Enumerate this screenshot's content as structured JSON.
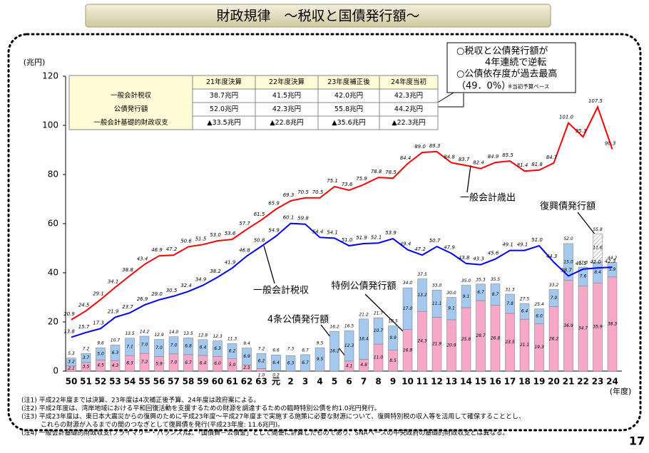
{
  "title": "財政規律　～税収と国債発行額～",
  "chart_data": {
    "type": "bar",
    "y_unit": "(兆円)",
    "x_unit": "(年度)",
    "categories": [
      "50",
      "51",
      "52",
      "53",
      "54",
      "55",
      "56",
      "57",
      "58",
      "59",
      "60",
      "61",
      "62",
      "63",
      "元",
      "2",
      "3",
      "4",
      "5",
      "6",
      "7",
      "8",
      "9",
      "10",
      "11",
      "12",
      "13",
      "14",
      "15",
      "16",
      "17",
      "18",
      "19",
      "20",
      "21",
      "22",
      "23",
      "24"
    ],
    "ylim": [
      0,
      120
    ],
    "yticks": [
      0,
      20,
      40,
      60,
      80,
      100,
      120
    ],
    "series": [
      {
        "name": "特例公債発行額",
        "type": "stack",
        "color": "#f7a8c8",
        "values": [
          2.1,
          3.5,
          4.5,
          4.3,
          6.3,
          7.2,
          5.9,
          7.0,
          6.7,
          6.4,
          6.0,
          5.0,
          2.5,
          1.0,
          0.2,
          null,
          null,
          null,
          null,
          4.1,
          4.8,
          11.0,
          8.5,
          16.9,
          24.3,
          21.9,
          20.9,
          25.8,
          28.7,
          26.8,
          23.5,
          21.1,
          19.3,
          26.2,
          36.9,
          34.7,
          35.9,
          38.3
        ],
        "value_labels": [
          "2.1",
          "3.5",
          "4.5",
          "4.3",
          "6.3",
          "7.2",
          "5.9",
          "7.0",
          "6.7",
          "6.4",
          "6.0",
          "5.0",
          "2.5",
          "1.0",
          "0.2",
          null,
          null,
          null,
          null,
          "4.1",
          "4.8",
          "11.0",
          "8.5",
          "16.9",
          "24.3",
          "21.9",
          "20.9",
          "25.8",
          "28.7",
          "26.8",
          "23.5",
          "21.1",
          "19.3",
          "26.2",
          "36.9",
          "34.7",
          "35.9",
          "38.3"
        ]
      },
      {
        "name": "4条公債発行額",
        "type": "stack",
        "color": "#a4c8ee",
        "values": [
          3.2,
          3.7,
          5.0,
          6.3,
          7.1,
          7.0,
          7.0,
          7.0,
          6.8,
          6.4,
          6.3,
          6.2,
          6.9,
          6.2,
          6.4,
          6.3,
          6.7,
          9.5,
          16.2,
          12.3,
          16.4,
          10.7,
          9.9,
          17.0,
          13.2,
          11.1,
          9.1,
          9.1,
          6.7,
          8.7,
          7.8,
          6.4,
          6.0,
          7.0,
          15.0,
          7.6,
          8.4,
          5.9
        ],
        "value_labels": [
          "3.2",
          "3.7",
          "5.0",
          "6.3",
          "7.1",
          "7.0",
          "7.0",
          "7.0",
          "6.8",
          "6.4",
          "6.3",
          "6.2",
          "6.9",
          "6.2",
          "6.4",
          "6.3",
          "6.7",
          "9.5",
          "16.2",
          "12.3",
          "16.4",
          "10.7",
          "9.9",
          "17.0",
          "13.2",
          "11.1",
          "9.1",
          "9.1",
          "6.7",
          "8.7",
          "7.8",
          "6.4",
          "6.0",
          "7.0",
          "15.0",
          "7.6",
          "8.4",
          "5.9"
        ]
      },
      {
        "name": "復興債発行額",
        "type": "stack",
        "color": "#ffffff",
        "hatch": true,
        "values": [
          null,
          null,
          null,
          null,
          null,
          null,
          null,
          null,
          null,
          null,
          null,
          null,
          null,
          null,
          null,
          null,
          null,
          null,
          null,
          null,
          null,
          null,
          null,
          null,
          null,
          null,
          null,
          null,
          null,
          null,
          null,
          null,
          null,
          null,
          null,
          null,
          11.6,
          null
        ],
        "value_labels": [
          null,
          null,
          null,
          null,
          null,
          null,
          null,
          null,
          null,
          null,
          null,
          null,
          null,
          null,
          null,
          null,
          null,
          null,
          null,
          null,
          null,
          null,
          null,
          null,
          null,
          null,
          null,
          null,
          null,
          null,
          null,
          null,
          null,
          null,
          null,
          null,
          "11.6",
          null
        ]
      },
      {
        "name": "一般会計歳出",
        "type": "line",
        "color": "#ff0000",
        "values": [
          20.9,
          24.5,
          29.1,
          34.1,
          38.8,
          43.4,
          46.9,
          47.2,
          50.6,
          51.5,
          53.0,
          53.6,
          57.7,
          61.5,
          65.9,
          69.3,
          70.5,
          70.5,
          75.1,
          73.6,
          75.9,
          78.8,
          78.5,
          84.4,
          89.0,
          89.3,
          84.8,
          83.7,
          82.4,
          84.9,
          85.5,
          81.4,
          81.8,
          84.7,
          101.0,
          95.3,
          107.5,
          90.3
        ],
        "value_labels": [
          "20.9",
          "24.5",
          "29.1",
          "34.1",
          "38.8",
          "43.4",
          "46.9",
          "47.2",
          "50.6",
          "51.5",
          "53.0",
          "53.6",
          "57.7",
          "61.5",
          "65.9",
          "69.3",
          "70.5",
          "70.5",
          "75.1",
          "73.6",
          "75.9",
          "78.8",
          "78.5",
          "84.4",
          "89.0",
          "89.3",
          "84.8",
          "83.7",
          "82.4",
          "84.9",
          "85.5",
          "81.4",
          "81.8",
          "84.7",
          "101.0",
          "95.3",
          "107.5",
          "90.3"
        ]
      },
      {
        "name": "一般会計税収",
        "type": "line",
        "color": "#0000ff",
        "values": [
          13.8,
          15.7,
          17.3,
          21.9,
          23.7,
          26.9,
          29.0,
          30.5,
          32.4,
          34.9,
          38.2,
          41.9,
          46.8,
          50.8,
          54.9,
          60.1,
          59.8,
          54.4,
          54.1,
          51.0,
          51.9,
          52.1,
          53.9,
          49.4,
          47.2,
          50.7,
          47.9,
          43.8,
          43.3,
          45.6,
          49.1,
          49.1,
          51.0,
          44.3,
          38.7,
          41.5,
          42.0,
          42.3
        ],
        "value_labels": [
          "13.8",
          "15.7",
          "17.3",
          "21.9",
          "23.7",
          "26.9",
          "29.0",
          "30.5",
          "32.4",
          "34.9",
          "38.2",
          "41.9",
          "46.8",
          "50.8",
          "54.9",
          "60.1",
          "59.8",
          "54.4",
          "54.1",
          "51.0",
          "51.9",
          "52.1",
          "53.9",
          "49.4",
          "47.2",
          "50.7",
          "47.9",
          "43.8",
          "43.3",
          "45.6",
          "49.1",
          "49.1",
          "51.0",
          "44.3",
          "38.7",
          "41.5",
          "42.0",
          "42.3"
        ]
      }
    ],
    "bond_totals": {
      "values": [
        5.3,
        7.2,
        9.6,
        10.7,
        13.5,
        14.2,
        12.9,
        14.0,
        13.5,
        12.8,
        12.3,
        11.3,
        9.4,
        7.2,
        6.6,
        7.3,
        6.7,
        9.5,
        16.2,
        16.5,
        21.2,
        21.7,
        18.5,
        34.0,
        37.5,
        33.0,
        30.0,
        35.0,
        35.3,
        35.5,
        31.3,
        27.5,
        25.4,
        33.2,
        52.0,
        42.3,
        55.8,
        44.2
      ],
      "value_labels": [
        "5.3",
        "7.2",
        "9.6",
        "10.7",
        "13.5",
        "14.2",
        "12.9",
        "14.0",
        "13.5",
        "12.8",
        "12.3",
        "11.3",
        "9.4",
        "7.2",
        "6.6",
        "7.3",
        "6.7",
        "9.5",
        "16.2",
        "16.5",
        "21.2",
        "21.7",
        "18.5",
        "34.0",
        "37.5",
        "33.0",
        "30.0",
        "35.0",
        "35.3",
        "35.5",
        "31.3",
        "27.5",
        "25.4",
        "33.2",
        "52.0",
        "42.3",
        "55.8",
        "44.2"
      ]
    }
  },
  "table": {
    "header": [
      "21年度決算",
      "22年度決算",
      "23年度補正後",
      "24年度当初"
    ],
    "rows": [
      [
        "一般会計税収",
        "38.7兆円",
        "41.5兆円",
        "42.0兆円",
        "42.3兆円"
      ],
      [
        "公債発行額",
        "52.0兆円",
        "42.3兆円",
        "55.8兆円",
        "44.2兆円"
      ],
      [
        "一般会計基礎的財政収支",
        "▲33.5兆円",
        "▲22.8兆円",
        "▲35.6兆円",
        "▲22.3兆円"
      ]
    ]
  },
  "callout": [
    "○税収と公債発行額が",
    "4年連続で逆転",
    "○公債依存度が過去最高",
    "（49．0%）",
    "※当初予算ベース"
  ],
  "notes": [
    "(注1) 平成22年度までは決算、23年度は4次補正後予算、24年度は政府案による。",
    "(注2) 平成2年度は、湾岸地域における平和回復活動を支援するための財源を調達するための臨時特別公債を約1.0兆円発行。",
    "(注3) 平成23年度は、東日本大震災からの復興のために平成23年度～平成27年度まで実施する施策に必要な財源について、復興特別税の収入等を活用して確保することとし、",
    "　　　これらの財源が入るまでの間のつなぎとして復興債を発行(平成23年度: 11.6兆円)。",
    "(注4) 一般会計基礎的財政収支(プライマリー・バランス)は、「国債費－公債金」として簡便に計算したものであり、SNAベースの中央政府の基礎的財政収支とは異なる。"
  ],
  "page_number": "17"
}
